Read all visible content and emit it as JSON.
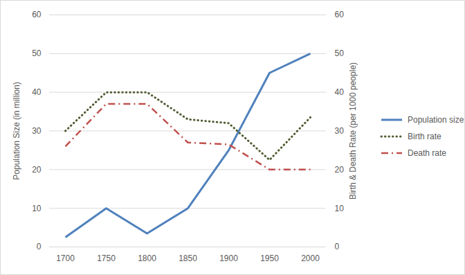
{
  "chart_data": {
    "type": "line",
    "categories": [
      1700,
      1750,
      1800,
      1850,
      1900,
      1950,
      2000
    ],
    "ylabel": "Population Size (in million)",
    "y2label": "Birth & Death Rate (per 1000 people)",
    "ylim": [
      0,
      60
    ],
    "yticks": [
      0,
      10,
      20,
      30,
      40,
      50,
      60
    ],
    "y2lim": [
      0,
      60
    ],
    "y2ticks": [
      0,
      10,
      20,
      30,
      40,
      50,
      60
    ],
    "grid": true,
    "legend": "right",
    "series": [
      {
        "name": "Population size",
        "color": "#4f81bd",
        "line_style": "solid",
        "values": [
          2.5,
          10,
          3.5,
          10,
          25,
          45,
          50
        ]
      },
      {
        "name": "Birth rate",
        "color": "#4e5b31",
        "line_style": "dotted",
        "axis": "y2",
        "values": [
          30,
          40,
          40,
          33,
          32,
          22.5,
          33.5
        ]
      },
      {
        "name": "Death rate",
        "color": "#c0504d",
        "line_style": "dashdot",
        "axis": "y2",
        "values": [
          26,
          37,
          37,
          27,
          26.5,
          20,
          20
        ]
      }
    ]
  }
}
